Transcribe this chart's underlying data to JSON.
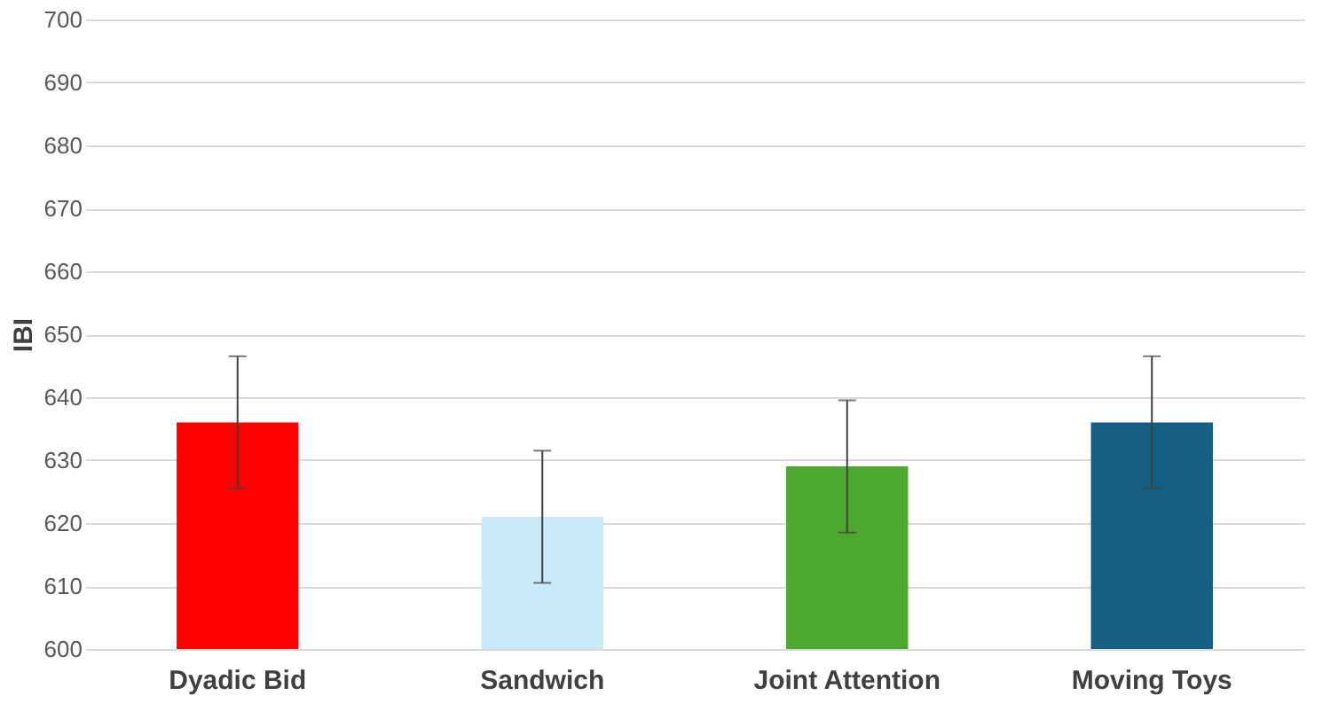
{
  "chart_data": {
    "type": "bar",
    "ylabel": "IBI",
    "categories": [
      "Dyadic Bid",
      "Sandwich",
      "Joint Attention",
      "Moving Toys"
    ],
    "values": [
      636,
      621,
      629,
      636
    ],
    "colors": [
      "#ff0000",
      "#c8ebfa",
      "#4ea72e",
      "#156082"
    ],
    "errors": [
      10.5,
      10.5,
      10.5,
      10.5
    ],
    "ylim": [
      600,
      700
    ],
    "yticks": [
      600,
      610,
      620,
      630,
      640,
      650,
      660,
      670,
      680,
      690,
      700
    ],
    "grid": "y"
  }
}
